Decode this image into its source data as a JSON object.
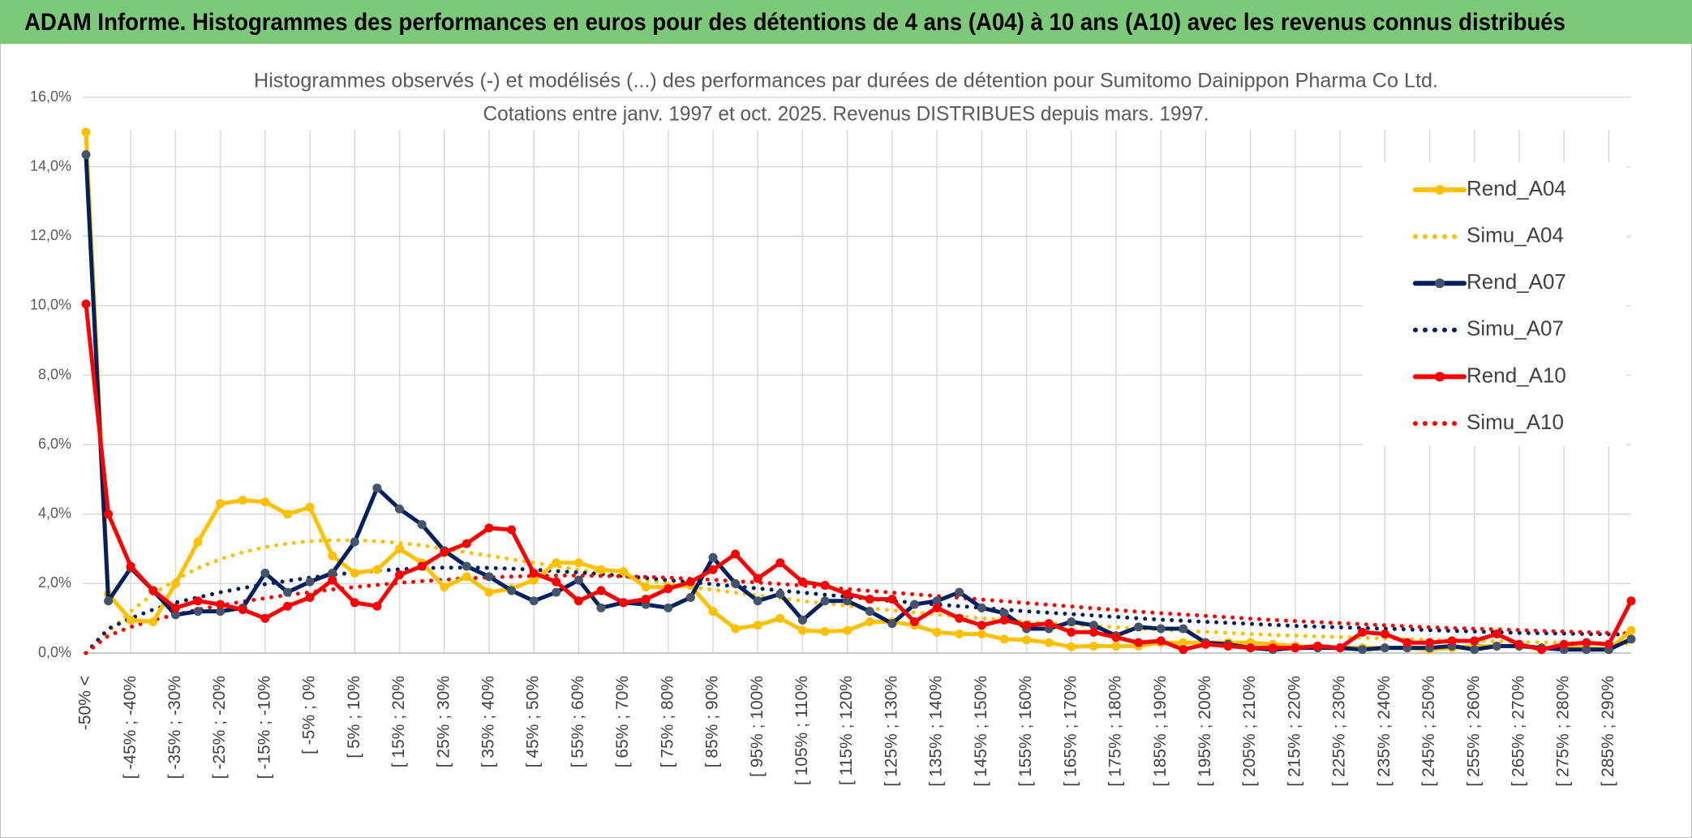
{
  "header": "ADAM Informe. Histogrammes des performances en euros pour des détentions de 4 ans (A04) à 10 ans (A10) avec les revenus connus distribués",
  "chart_data": {
    "type": "line",
    "title": "Histogrammes observés (-) et modélisés (...) des performances par durées de détention pour Sumitomo Dainippon Pharma Co Ltd.",
    "subtitle": "Cotations entre janv. 1997 et oct. 2025. Revenus DISTRIBUES depuis mars. 1997.",
    "categories": [
      "-50% <",
      null,
      "[ -45% ; -40%",
      null,
      "[ -35% ; -30%",
      null,
      "[ -25% ; -20%",
      null,
      "[ -15% ; -10%",
      null,
      "[ -5% ; 0%",
      null,
      "[ 5% ; 10%",
      null,
      "[ 15% ; 20%",
      null,
      "[ 25% ; 30%",
      null,
      "[ 35% ; 40%",
      null,
      "[ 45% ; 50%",
      null,
      "[ 55% ; 60%",
      null,
      "[ 65% ; 70%",
      null,
      "[ 75% ; 80%",
      null,
      "[ 85% ; 90%",
      null,
      "[ 95% ; 100%",
      null,
      "[ 105% ; 110%",
      null,
      "[ 115% ; 120%",
      null,
      "[ 125% ; 130%",
      null,
      "[ 135% ; 140%",
      null,
      "[ 145% ; 150%",
      null,
      "[ 155% ; 160%",
      null,
      "[ 165% ; 170%",
      null,
      "[ 175% ; 180%",
      null,
      "[ 185% ; 190%",
      null,
      "[ 195% ; 200%",
      null,
      "[ 205% ; 210%",
      null,
      "[ 215% ; 220%",
      null,
      "[ 225% ; 230%",
      null,
      "[ 235% ; 240%",
      null,
      "[ 245% ; 250%",
      null,
      "[ 255% ; 260%",
      null,
      "[ 265% ; 270%",
      null,
      "[ 275% ; 280%",
      null,
      "[ 285% ; 290%",
      null
    ],
    "series": [
      {
        "name": "Rend_A04",
        "color": "#FFC000",
        "dashed": false,
        "markers": true,
        "values": [
          15.0,
          1.7,
          0.95,
          0.9,
          2.0,
          3.2,
          4.3,
          4.4,
          4.35,
          4.0,
          4.2,
          2.8,
          2.3,
          2.4,
          3.0,
          2.6,
          1.9,
          2.2,
          1.75,
          1.85,
          2.1,
          2.6,
          2.6,
          2.4,
          2.35,
          1.9,
          1.9,
          1.95,
          1.2,
          0.7,
          0.8,
          1.0,
          0.65,
          0.62,
          0.65,
          0.9,
          0.9,
          0.8,
          0.6,
          0.55,
          0.55,
          0.4,
          0.38,
          0.3,
          0.18,
          0.2,
          0.2,
          0.2,
          0.3,
          0.3,
          0.3,
          0.3,
          0.3,
          0.25,
          0.2,
          0.15,
          0.15,
          0.15,
          0.15,
          0.15,
          0.1,
          0.15,
          0.2,
          0.2,
          0.2,
          0.15,
          0.15,
          0.15,
          0.1,
          0.65
        ]
      },
      {
        "name": "Simu_A04",
        "color": "#FFC000",
        "dashed": true,
        "markers": false,
        "values": [
          0,
          0.6,
          1.2,
          1.7,
          2.1,
          2.45,
          2.7,
          2.9,
          3.05,
          3.15,
          3.22,
          3.25,
          3.25,
          3.22,
          3.17,
          3.1,
          3.0,
          2.9,
          2.8,
          2.7,
          2.6,
          2.5,
          2.4,
          2.3,
          2.2,
          2.1,
          2.0,
          1.9,
          1.82,
          1.74,
          1.66,
          1.58,
          1.5,
          1.43,
          1.36,
          1.29,
          1.23,
          1.17,
          1.11,
          1.05,
          1.0,
          0.95,
          0.9,
          0.86,
          0.82,
          0.78,
          0.74,
          0.7,
          0.67,
          0.64,
          0.61,
          0.58,
          0.55,
          0.52,
          0.5,
          0.48,
          0.46,
          0.44,
          0.42,
          0.4,
          0.38,
          0.37,
          0.35,
          0.34,
          0.32,
          0.31,
          0.3,
          0.29,
          0.28,
          0.27
        ]
      },
      {
        "name": "Rend_A07",
        "color": "#002060",
        "dashed": false,
        "markers": true,
        "values": [
          14.35,
          1.5,
          2.45,
          1.8,
          1.1,
          1.2,
          1.2,
          1.3,
          2.3,
          1.75,
          2.05,
          2.3,
          3.2,
          4.75,
          4.15,
          3.7,
          2.95,
          2.5,
          2.2,
          1.8,
          1.5,
          1.75,
          2.1,
          1.3,
          1.45,
          1.4,
          1.3,
          1.6,
          2.75,
          2.0,
          1.5,
          1.7,
          0.95,
          1.5,
          1.5,
          1.2,
          0.85,
          1.4,
          1.5,
          1.75,
          1.3,
          1.15,
          0.7,
          0.7,
          0.9,
          0.8,
          0.5,
          0.75,
          0.7,
          0.7,
          0.3,
          0.25,
          0.15,
          0.1,
          0.15,
          0.15,
          0.15,
          0.1,
          0.15,
          0.15,
          0.15,
          0.2,
          0.1,
          0.2,
          0.2,
          0.15,
          0.1,
          0.1,
          0.1,
          0.4
        ]
      },
      {
        "name": "Simu_A07",
        "color": "#002060",
        "dashed": true,
        "markers": false,
        "values": [
          0,
          0.7,
          1.0,
          1.25,
          1.45,
          1.6,
          1.75,
          1.87,
          1.98,
          2.08,
          2.17,
          2.25,
          2.32,
          2.37,
          2.41,
          2.44,
          2.46,
          2.46,
          2.45,
          2.43,
          2.4,
          2.36,
          2.32,
          2.27,
          2.22,
          2.16,
          2.1,
          2.04,
          1.98,
          1.92,
          1.86,
          1.8,
          1.74,
          1.68,
          1.62,
          1.56,
          1.5,
          1.45,
          1.4,
          1.35,
          1.3,
          1.25,
          1.2,
          1.16,
          1.12,
          1.08,
          1.04,
          1.0,
          0.96,
          0.93,
          0.9,
          0.87,
          0.84,
          0.81,
          0.78,
          0.76,
          0.74,
          0.72,
          0.7,
          0.68,
          0.66,
          0.64,
          0.62,
          0.6,
          0.58,
          0.57,
          0.56,
          0.55,
          0.54,
          0.53
        ]
      },
      {
        "name": "Rend_A10",
        "color": "#FF0000",
        "dashed": false,
        "markers": true,
        "values": [
          10.05,
          4.0,
          2.5,
          1.8,
          1.3,
          1.5,
          1.4,
          1.25,
          1.0,
          1.35,
          1.6,
          2.1,
          1.45,
          1.35,
          2.25,
          2.5,
          2.9,
          3.15,
          3.6,
          3.55,
          2.3,
          2.05,
          1.5,
          1.8,
          1.45,
          1.55,
          1.85,
          2.05,
          2.4,
          2.85,
          2.15,
          2.6,
          2.05,
          1.95,
          1.7,
          1.55,
          1.55,
          0.9,
          1.3,
          1.0,
          0.8,
          0.95,
          0.8,
          0.85,
          0.6,
          0.6,
          0.45,
          0.3,
          0.35,
          0.1,
          0.25,
          0.2,
          0.15,
          0.15,
          0.15,
          0.2,
          0.15,
          0.6,
          0.55,
          0.3,
          0.3,
          0.35,
          0.35,
          0.55,
          0.25,
          0.1,
          0.25,
          0.3,
          0.25,
          1.5
        ]
      },
      {
        "name": "Simu_A10",
        "color": "#FF0000",
        "dashed": true,
        "markers": false,
        "values": [
          0,
          0.5,
          0.75,
          0.95,
          1.1,
          1.25,
          1.37,
          1.48,
          1.58,
          1.67,
          1.75,
          1.83,
          1.9,
          1.96,
          2.02,
          2.07,
          2.11,
          2.15,
          2.18,
          2.2,
          2.22,
          2.23,
          2.23,
          2.22,
          2.21,
          2.19,
          2.17,
          2.14,
          2.11,
          2.07,
          2.03,
          1.99,
          1.94,
          1.89,
          1.84,
          1.79,
          1.74,
          1.69,
          1.64,
          1.59,
          1.54,
          1.49,
          1.44,
          1.39,
          1.34,
          1.29,
          1.24,
          1.19,
          1.15,
          1.11,
          1.07,
          1.03,
          0.99,
          0.95,
          0.92,
          0.89,
          0.86,
          0.83,
          0.8,
          0.77,
          0.74,
          0.72,
          0.7,
          0.68,
          0.66,
          0.64,
          0.62,
          0.6,
          0.58,
          0.56
        ]
      }
    ],
    "ylim": [
      0,
      16
    ],
    "yticks": [
      {
        "value": 0,
        "label": "0,0%"
      },
      {
        "value": 2,
        "label": "2,0%"
      },
      {
        "value": 4,
        "label": "4,0%"
      },
      {
        "value": 6,
        "label": "6,0%"
      },
      {
        "value": 8,
        "label": "8,0%"
      },
      {
        "value": 10,
        "label": "10,0%"
      },
      {
        "value": 12,
        "label": "12,0%"
      },
      {
        "value": 14,
        "label": "14,0%"
      },
      {
        "value": 16,
        "label": "16,0%"
      }
    ],
    "grid": true,
    "legend": "right"
  }
}
